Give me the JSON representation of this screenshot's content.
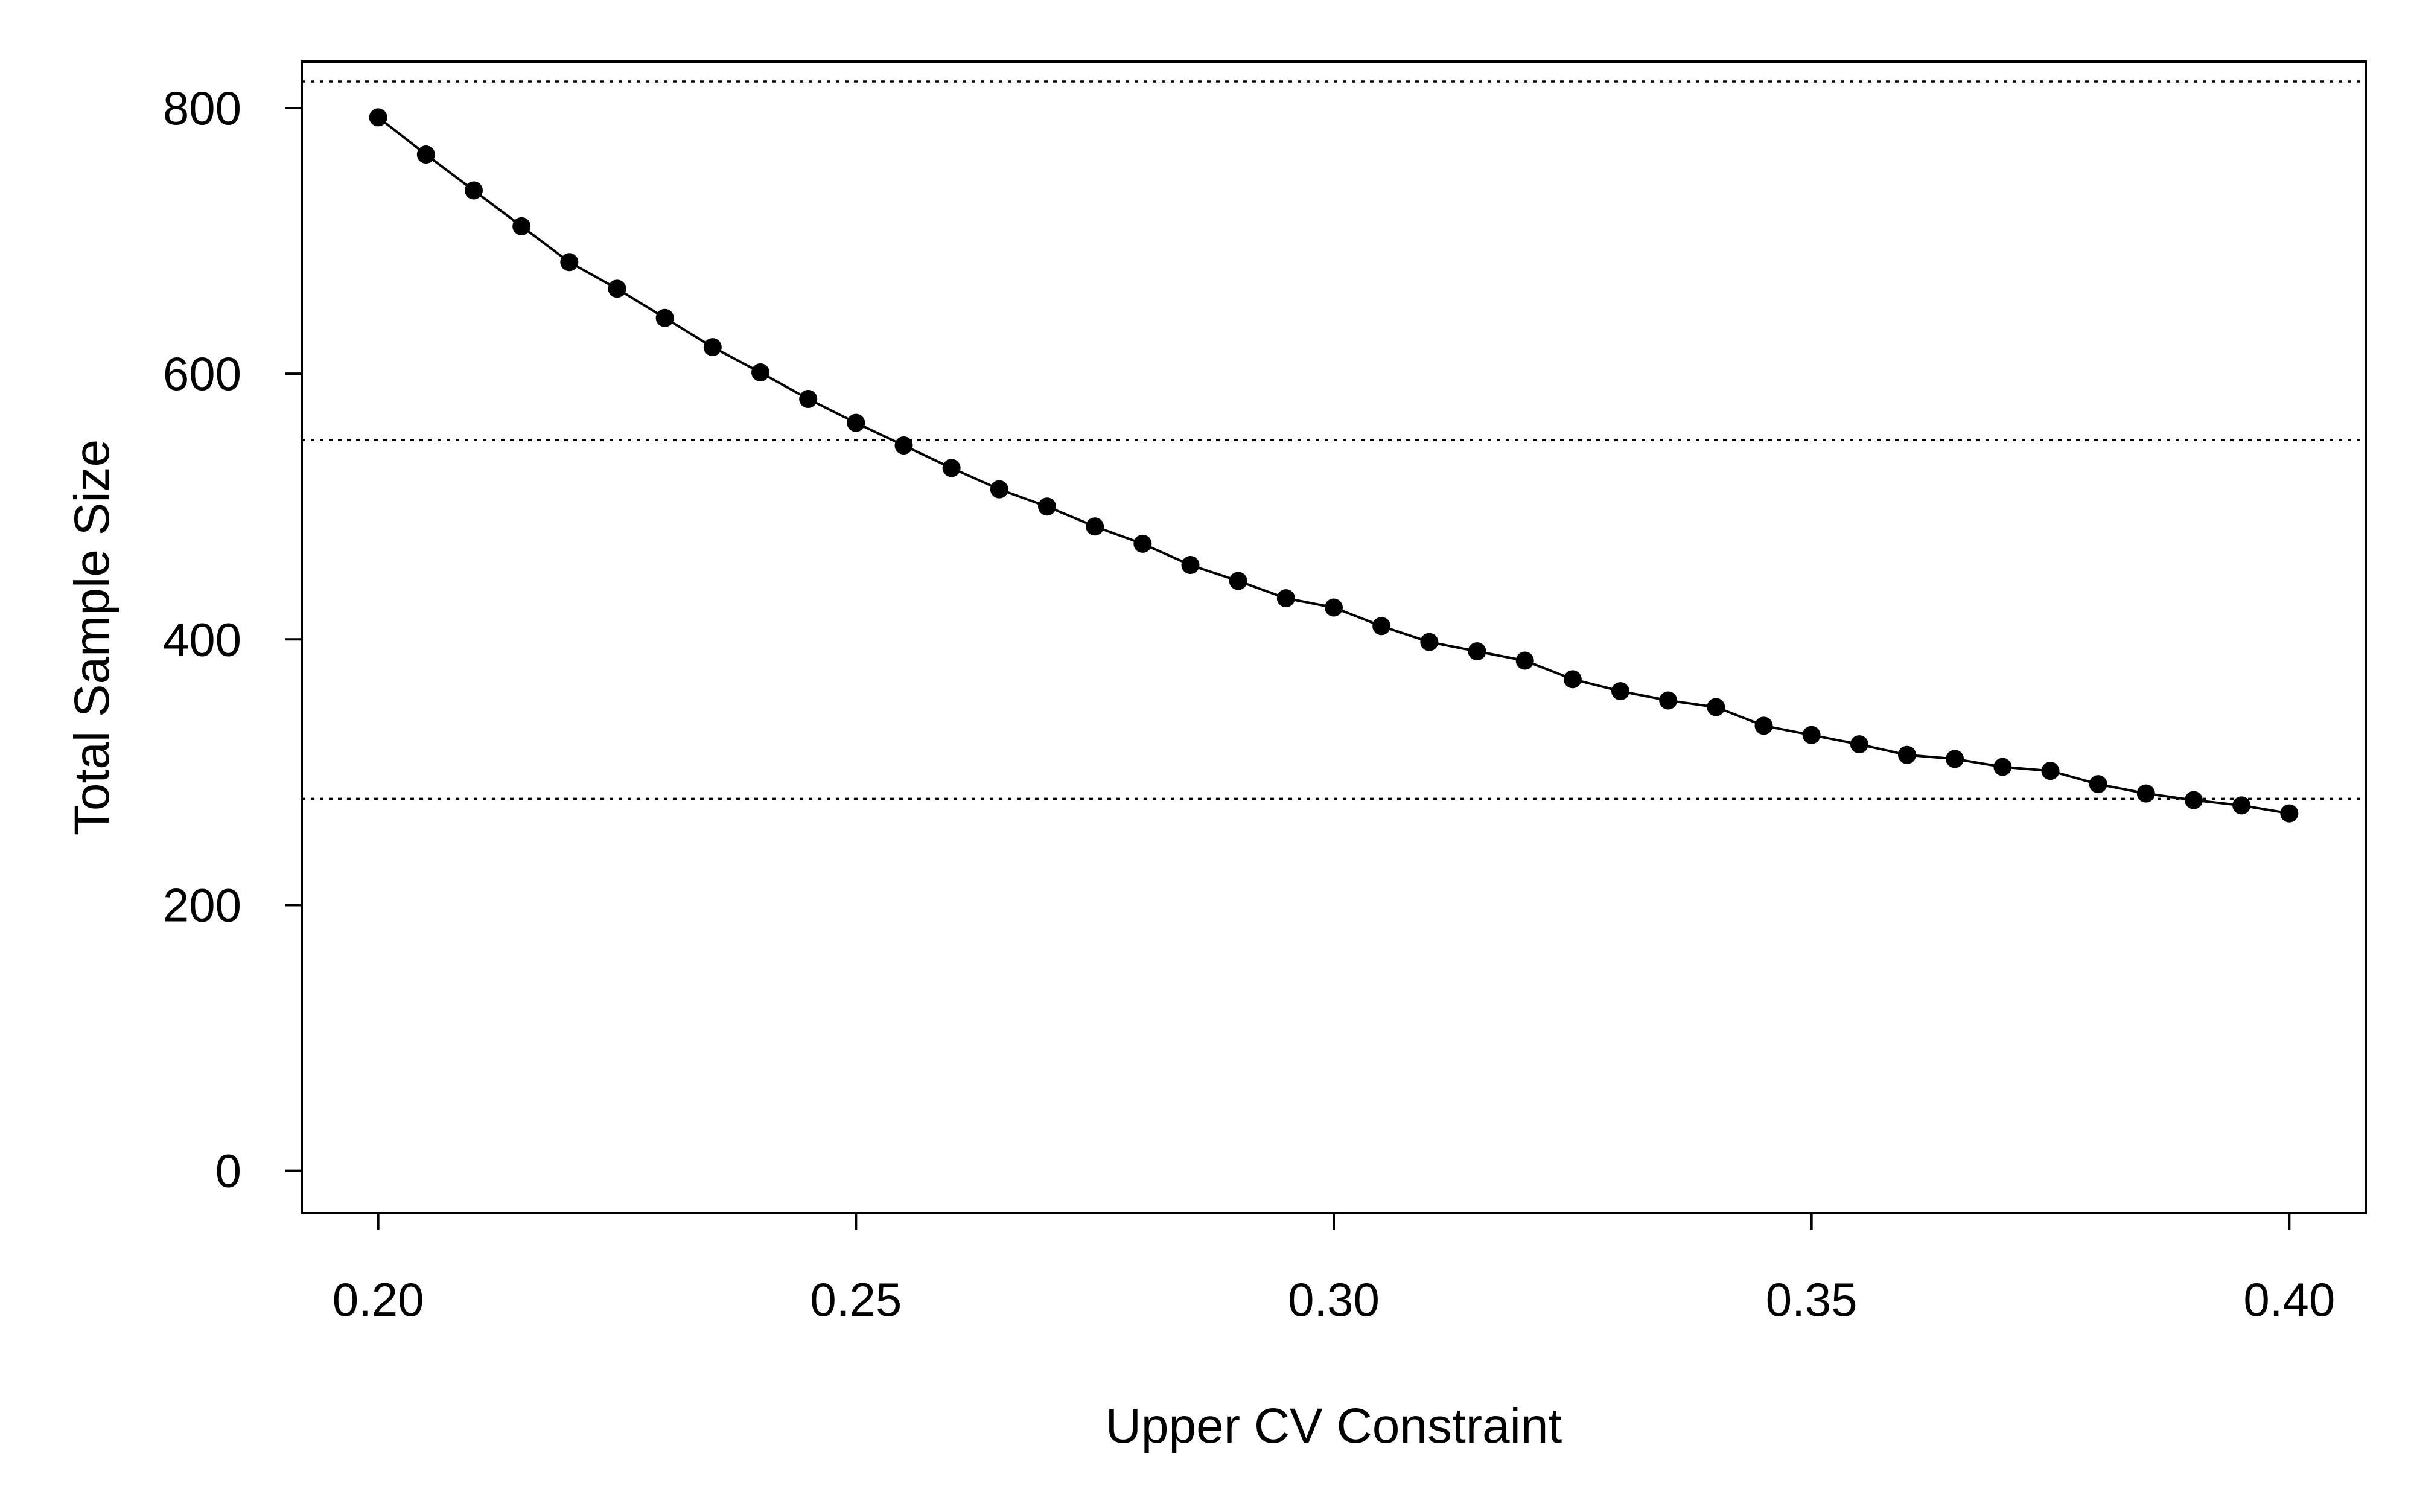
{
  "chart_data": {
    "type": "line",
    "title": "",
    "xlabel": "Upper CV Constraint",
    "ylabel": "Total Sample Size",
    "xlim": [
      0.192,
      0.408
    ],
    "ylim": [
      -32,
      835
    ],
    "x_ticks": [
      0.2,
      0.25,
      0.3,
      0.35,
      0.4
    ],
    "x_tick_labels": [
      "0.20",
      "0.25",
      "0.30",
      "0.35",
      "0.40"
    ],
    "y_ticks": [
      0,
      200,
      400,
      600,
      800
    ],
    "y_tick_labels": [
      "0",
      "200",
      "400",
      "600",
      "800"
    ],
    "grid": false,
    "legend": "none",
    "reference_lines_y": [
      280,
      550,
      820
    ],
    "series": [
      {
        "marker": "filled-circle",
        "line": "solid",
        "color": "#000000",
        "x": [
          0.2,
          0.205,
          0.21,
          0.215,
          0.22,
          0.225,
          0.23,
          0.235,
          0.24,
          0.245,
          0.25,
          0.255,
          0.26,
          0.265,
          0.27,
          0.275,
          0.28,
          0.285,
          0.29,
          0.295,
          0.3,
          0.305,
          0.31,
          0.315,
          0.32,
          0.325,
          0.33,
          0.335,
          0.34,
          0.345,
          0.35,
          0.355,
          0.36,
          0.365,
          0.37,
          0.375,
          0.38,
          0.385,
          0.39,
          0.395,
          0.4
        ],
        "y": [
          793,
          765,
          738,
          711,
          684,
          664,
          642,
          620,
          601,
          581,
          563,
          546,
          529,
          513,
          500,
          485,
          472,
          456,
          444,
          431,
          424,
          410,
          398,
          391,
          384,
          370,
          361,
          354,
          349,
          335,
          328,
          321,
          313,
          310,
          304,
          301,
          291,
          284,
          279,
          275,
          269
        ]
      }
    ]
  }
}
